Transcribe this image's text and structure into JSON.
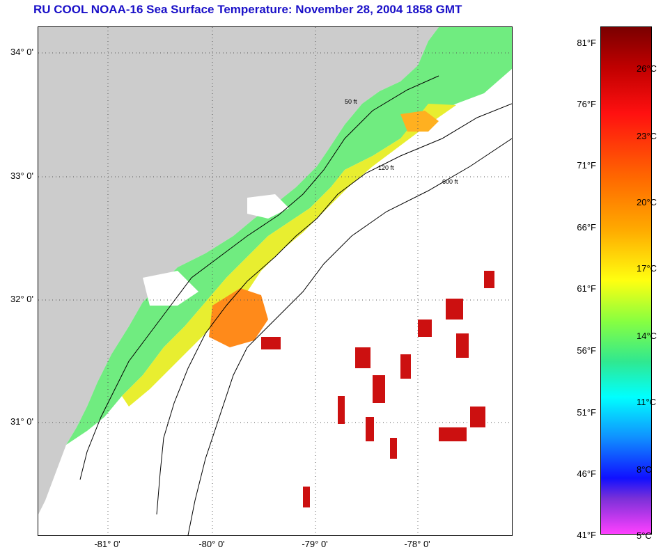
{
  "title": "RU COOL  NOAA-16  Sea Surface Temperature:  November 28, 2004 1858 GMT",
  "map": {
    "lat_labels": [
      "34° 0'",
      "33° 0'",
      "32° 0'",
      "31° 0'"
    ],
    "lon_labels": [
      "-81° 0'",
      "-80° 0'",
      "-79° 0'",
      "-78° 0'"
    ],
    "contour_labels": [
      "50 ft",
      "120 ft",
      "600 ft"
    ],
    "colors": {
      "land": "#cccccc",
      "cloud": "#ffffff",
      "warm_patch": "#cc1010"
    }
  },
  "colorbar": {
    "fahrenheit": [
      "81°F",
      "76°F",
      "71°F",
      "66°F",
      "61°F",
      "56°F",
      "51°F",
      "46°F",
      "41°F"
    ],
    "celsius": [
      "26°C",
      "23°C",
      "20°C",
      "17°C",
      "14°C",
      "11°C",
      "8°C",
      "5°C"
    ]
  }
}
